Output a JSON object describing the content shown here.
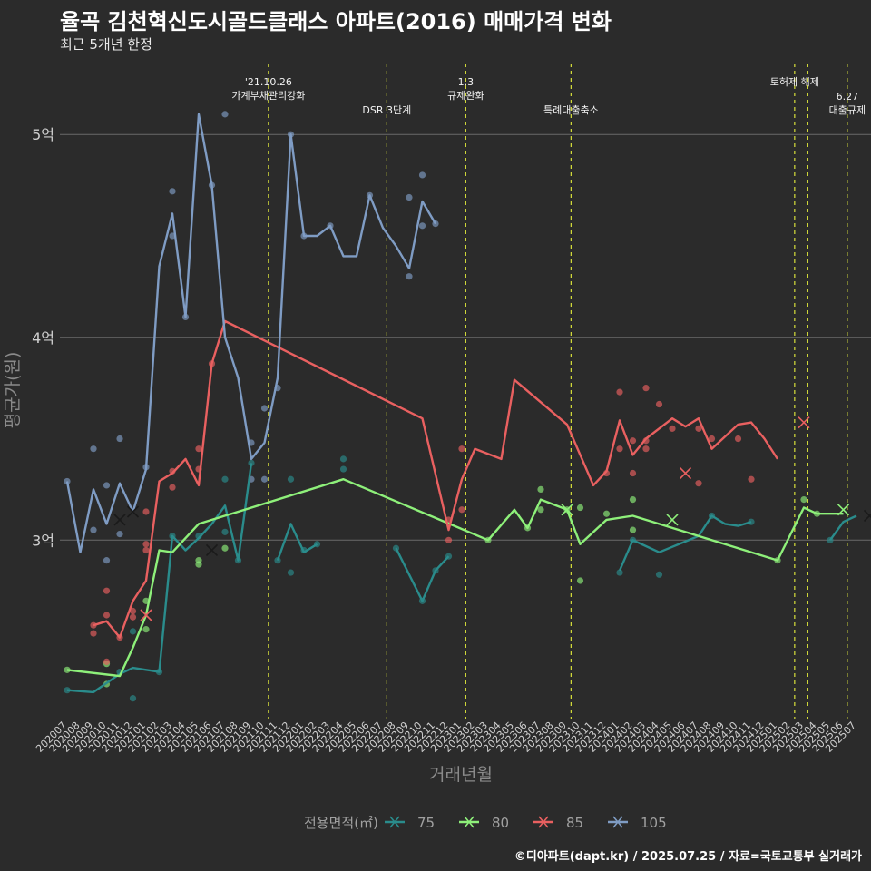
{
  "title": "율곡 김천혁신도시골드클래스 아파트(2016) 매매가격 변화",
  "subtitle": "최근 5개년 한정",
  "credit": "©디아파트(dapt.kr) / 2025.07.25 / 자료=국토교통부 실거래가",
  "chart_data": {
    "type": "line",
    "xlabel": "거래년월",
    "ylabel": "평균가(원)",
    "x": [
      "202007",
      "202008",
      "202009",
      "202010",
      "202011",
      "202012",
      "202101",
      "202102",
      "202103",
      "202104",
      "202105",
      "202106",
      "202107",
      "202108",
      "202109",
      "202110",
      "202111",
      "202112",
      "202201",
      "202202",
      "202203",
      "202204",
      "202205",
      "202206",
      "202207",
      "202208",
      "202209",
      "202210",
      "202211",
      "202212",
      "202301",
      "202302",
      "202303",
      "202304",
      "202305",
      "202306",
      "202307",
      "202308",
      "202309",
      "202310",
      "202311",
      "202312",
      "202401",
      "202402",
      "202403",
      "202404",
      "202405",
      "202406",
      "202407",
      "202408",
      "202409",
      "202410",
      "202411",
      "202412",
      "202501",
      "202502",
      "202503",
      "202504",
      "202505",
      "202506",
      "202507"
    ],
    "y_ticks": [
      {
        "value": 3.0,
        "label": "3억"
      },
      {
        "value": 4.0,
        "label": "4억"
      },
      {
        "value": 5.0,
        "label": "5억"
      }
    ],
    "ylim": [
      2.12,
      5.35
    ],
    "legend": {
      "title": "전용면적(㎡)",
      "position": "bottom"
    },
    "series": [
      {
        "name": "75",
        "color": "#2a8c8c",
        "values": [
          [
            0,
            2.26
          ],
          [
            2,
            2.25
          ],
          [
            4,
            2.34
          ],
          [
            5,
            2.37
          ],
          [
            7,
            2.35
          ],
          [
            8,
            3.02
          ],
          [
            9,
            2.95
          ],
          [
            10,
            3.01
          ],
          [
            11,
            3.08
          ],
          [
            12,
            3.17
          ],
          [
            13,
            2.9
          ],
          [
            14,
            3.38
          ],
          null,
          [
            16,
            2.9
          ],
          [
            17,
            3.08
          ],
          [
            18,
            2.94
          ],
          [
            19,
            2.98
          ],
          null,
          [
            25,
            2.96
          ],
          [
            27,
            2.7
          ],
          [
            28,
            2.85
          ],
          [
            29,
            2.92
          ],
          null,
          [
            42,
            2.85
          ],
          [
            43,
            3.0
          ],
          [
            44,
            2.97
          ],
          [
            45,
            2.94
          ],
          [
            48,
            3.02
          ],
          [
            49,
            3.12
          ],
          [
            50,
            3.08
          ],
          [
            51,
            3.07
          ],
          [
            52,
            3.09
          ],
          null,
          [
            58,
            3.0
          ],
          [
            59,
            3.09
          ],
          [
            60,
            3.12
          ]
        ]
      },
      {
        "name": "80",
        "color": "#8ef07a",
        "values": [
          [
            0,
            2.36
          ],
          [
            4,
            2.33
          ],
          [
            5,
            2.47
          ],
          [
            6,
            2.63
          ],
          [
            7,
            2.95
          ],
          [
            8,
            2.94
          ],
          [
            10,
            3.08
          ],
          [
            21,
            3.3
          ],
          [
            32,
            3.0
          ],
          [
            34,
            3.15
          ],
          [
            35,
            3.06
          ],
          [
            36,
            3.2
          ],
          [
            38,
            3.15
          ],
          [
            39,
            2.98
          ],
          [
            41,
            3.1
          ],
          [
            43,
            3.12
          ],
          [
            54,
            2.9
          ],
          [
            56,
            3.16
          ],
          [
            57,
            3.13
          ],
          [
            59,
            3.13
          ]
        ]
      },
      {
        "name": "85",
        "color": "#e96060",
        "values": [
          [
            2,
            2.58
          ],
          [
            3,
            2.6
          ],
          [
            4,
            2.52
          ],
          [
            5,
            2.7
          ],
          [
            6,
            2.8
          ],
          [
            7,
            3.29
          ],
          [
            8,
            3.33
          ],
          [
            9,
            3.4
          ],
          [
            10,
            3.27
          ],
          [
            11,
            3.87
          ],
          [
            12,
            4.08
          ],
          [
            27,
            3.6
          ],
          [
            29,
            3.05
          ],
          [
            30,
            3.3
          ],
          [
            31,
            3.45
          ],
          [
            33,
            3.4
          ],
          [
            34,
            3.79
          ],
          [
            38,
            3.57
          ],
          [
            40,
            3.27
          ],
          [
            41,
            3.34
          ],
          [
            42,
            3.59
          ],
          [
            43,
            3.42
          ],
          [
            44,
            3.5
          ],
          [
            46,
            3.6
          ],
          [
            47,
            3.56
          ],
          [
            48,
            3.6
          ],
          [
            49,
            3.45
          ],
          [
            51,
            3.57
          ],
          [
            52,
            3.58
          ],
          [
            53,
            3.5
          ],
          [
            54,
            3.4
          ]
        ]
      },
      {
        "name": "105",
        "color": "#7f9cc4",
        "values": [
          [
            0,
            3.29
          ],
          [
            1,
            2.94
          ],
          [
            2,
            3.25
          ],
          [
            3,
            3.08
          ],
          [
            4,
            3.28
          ],
          [
            5,
            3.14
          ],
          [
            6,
            3.35
          ],
          [
            7,
            4.35
          ],
          [
            8,
            4.61
          ],
          [
            9,
            4.1
          ],
          [
            10,
            5.1
          ],
          [
            11,
            4.75
          ],
          [
            12,
            4.0
          ],
          [
            13,
            3.8
          ],
          [
            14,
            3.4
          ],
          [
            15,
            3.48
          ],
          [
            16,
            3.8
          ],
          [
            17,
            5.0
          ],
          [
            18,
            4.5
          ],
          [
            19,
            4.5
          ],
          [
            20,
            4.55
          ],
          [
            21,
            4.4
          ],
          [
            22,
            4.4
          ],
          [
            23,
            4.7
          ],
          [
            24,
            4.54
          ],
          [
            25,
            4.45
          ],
          [
            26,
            4.34
          ],
          [
            27,
            4.67
          ],
          [
            28,
            4.56
          ]
        ]
      }
    ],
    "scatter_points": [
      {
        "series": "75",
        "x": 0,
        "y": 2.26
      },
      {
        "series": "75",
        "x": 4,
        "y": 2.35
      },
      {
        "series": "75",
        "x": 5,
        "y": 2.22
      },
      {
        "series": "75",
        "x": 5,
        "y": 2.55
      },
      {
        "series": "75",
        "x": 7,
        "y": 2.35
      },
      {
        "series": "75",
        "x": 8,
        "y": 3.02
      },
      {
        "series": "75",
        "x": 10,
        "y": 3.02
      },
      {
        "series": "75",
        "x": 12,
        "y": 3.3
      },
      {
        "series": "75",
        "x": 12,
        "y": 3.04
      },
      {
        "series": "75",
        "x": 13,
        "y": 2.9
      },
      {
        "series": "75",
        "x": 14,
        "y": 3.38
      },
      {
        "series": "75",
        "x": 16,
        "y": 2.9
      },
      {
        "series": "75",
        "x": 17,
        "y": 2.84
      },
      {
        "series": "75",
        "x": 17,
        "y": 3.3
      },
      {
        "series": "75",
        "x": 18,
        "y": 2.95
      },
      {
        "series": "75",
        "x": 19,
        "y": 2.98
      },
      {
        "series": "75",
        "x": 21,
        "y": 3.4
      },
      {
        "series": "75",
        "x": 21,
        "y": 3.35
      },
      {
        "series": "75",
        "x": 25,
        "y": 2.96
      },
      {
        "series": "75",
        "x": 27,
        "y": 2.7
      },
      {
        "series": "75",
        "x": 28,
        "y": 2.85
      },
      {
        "series": "75",
        "x": 29,
        "y": 2.92
      },
      {
        "series": "75",
        "x": 42,
        "y": 2.84
      },
      {
        "series": "75",
        "x": 43,
        "y": 3.0
      },
      {
        "series": "75",
        "x": 45,
        "y": 2.83
      },
      {
        "series": "75",
        "x": 49,
        "y": 3.12
      },
      {
        "series": "75",
        "x": 52,
        "y": 3.09
      },
      {
        "series": "75",
        "x": 58,
        "y": 3.0
      },
      {
        "series": "80",
        "x": 0,
        "y": 2.36
      },
      {
        "series": "80",
        "x": 3,
        "y": 2.39
      },
      {
        "series": "80",
        "x": 3,
        "y": 2.29
      },
      {
        "series": "80",
        "x": 6,
        "y": 2.7
      },
      {
        "series": "80",
        "x": 6,
        "y": 2.56
      },
      {
        "series": "80",
        "x": 10,
        "y": 2.88
      },
      {
        "series": "80",
        "x": 10,
        "y": 2.9
      },
      {
        "series": "80",
        "x": 12,
        "y": 2.96
      },
      {
        "series": "80",
        "x": 32,
        "y": 3.0
      },
      {
        "series": "80",
        "x": 35,
        "y": 3.06
      },
      {
        "series": "80",
        "x": 36,
        "y": 3.25
      },
      {
        "series": "80",
        "x": 36,
        "y": 3.15
      },
      {
        "series": "80",
        "x": 38,
        "y": 3.15
      },
      {
        "series": "80",
        "x": 39,
        "y": 2.8
      },
      {
        "series": "80",
        "x": 39,
        "y": 3.16
      },
      {
        "series": "80",
        "x": 41,
        "y": 3.13
      },
      {
        "series": "80",
        "x": 43,
        "y": 3.2
      },
      {
        "series": "80",
        "x": 43,
        "y": 3.05
      },
      {
        "series": "80",
        "x": 54,
        "y": 2.9
      },
      {
        "series": "80",
        "x": 56,
        "y": 3.2
      },
      {
        "series": "80",
        "x": 57,
        "y": 3.13
      },
      {
        "series": "85",
        "x": 2,
        "y": 2.58
      },
      {
        "series": "85",
        "x": 2,
        "y": 2.54
      },
      {
        "series": "85",
        "x": 3,
        "y": 2.75
      },
      {
        "series": "85",
        "x": 3,
        "y": 2.63
      },
      {
        "series": "85",
        "x": 3,
        "y": 2.4
      },
      {
        "series": "85",
        "x": 4,
        "y": 2.52
      },
      {
        "series": "85",
        "x": 5,
        "y": 2.65
      },
      {
        "series": "85",
        "x": 5,
        "y": 2.62
      },
      {
        "series": "85",
        "x": 6,
        "y": 3.14
      },
      {
        "series": "85",
        "x": 6,
        "y": 2.98
      },
      {
        "series": "85",
        "x": 6,
        "y": 2.95
      },
      {
        "series": "85",
        "x": 8,
        "y": 3.34
      },
      {
        "series": "85",
        "x": 8,
        "y": 3.26
      },
      {
        "series": "85",
        "x": 10,
        "y": 3.45
      },
      {
        "series": "85",
        "x": 10,
        "y": 3.35
      },
      {
        "series": "85",
        "x": 11,
        "y": 3.87
      },
      {
        "series": "85",
        "x": 29,
        "y": 3.0
      },
      {
        "series": "85",
        "x": 29,
        "y": 3.1
      },
      {
        "series": "85",
        "x": 30,
        "y": 3.45
      },
      {
        "series": "85",
        "x": 30,
        "y": 3.15
      },
      {
        "series": "85",
        "x": 41,
        "y": 3.33
      },
      {
        "series": "85",
        "x": 42,
        "y": 3.73
      },
      {
        "series": "85",
        "x": 42,
        "y": 3.45
      },
      {
        "series": "85",
        "x": 43,
        "y": 3.49
      },
      {
        "series": "85",
        "x": 43,
        "y": 3.33
      },
      {
        "series": "85",
        "x": 44,
        "y": 3.75
      },
      {
        "series": "85",
        "x": 44,
        "y": 3.49
      },
      {
        "series": "85",
        "x": 44,
        "y": 3.45
      },
      {
        "series": "85",
        "x": 45,
        "y": 3.67
      },
      {
        "series": "85",
        "x": 46,
        "y": 3.55
      },
      {
        "series": "85",
        "x": 48,
        "y": 3.55
      },
      {
        "series": "85",
        "x": 48,
        "y": 3.28
      },
      {
        "series": "85",
        "x": 49,
        "y": 3.5
      },
      {
        "series": "85",
        "x": 51,
        "y": 3.5
      },
      {
        "series": "85",
        "x": 52,
        "y": 3.3
      },
      {
        "series": "105",
        "x": 0,
        "y": 3.29
      },
      {
        "series": "105",
        "x": 2,
        "y": 3.45
      },
      {
        "series": "105",
        "x": 2,
        "y": 3.05
      },
      {
        "series": "105",
        "x": 3,
        "y": 3.27
      },
      {
        "series": "105",
        "x": 3,
        "y": 2.9
      },
      {
        "series": "105",
        "x": 4,
        "y": 3.5
      },
      {
        "series": "105",
        "x": 4,
        "y": 3.03
      },
      {
        "series": "105",
        "x": 6,
        "y": 3.36
      },
      {
        "series": "105",
        "x": 8,
        "y": 4.72
      },
      {
        "series": "105",
        "x": 8,
        "y": 4.5
      },
      {
        "series": "105",
        "x": 9,
        "y": 4.1
      },
      {
        "series": "105",
        "x": 12,
        "y": 5.1
      },
      {
        "series": "105",
        "x": 11,
        "y": 4.75
      },
      {
        "series": "105",
        "x": 14,
        "y": 3.48
      },
      {
        "series": "105",
        "x": 14,
        "y": 3.3
      },
      {
        "series": "105",
        "x": 15,
        "y": 3.65
      },
      {
        "series": "105",
        "x": 15,
        "y": 3.3
      },
      {
        "series": "105",
        "x": 16,
        "y": 3.75
      },
      {
        "series": "105",
        "x": 17,
        "y": 5.0
      },
      {
        "series": "105",
        "x": 18,
        "y": 4.5
      },
      {
        "series": "105",
        "x": 20,
        "y": 4.55
      },
      {
        "series": "105",
        "x": 23,
        "y": 4.7
      },
      {
        "series": "105",
        "x": 26,
        "y": 4.69
      },
      {
        "series": "105",
        "x": 26,
        "y": 4.3
      },
      {
        "series": "105",
        "x": 27,
        "y": 4.8
      },
      {
        "series": "105",
        "x": 27,
        "y": 4.55
      },
      {
        "series": "105",
        "x": 28,
        "y": 4.56
      }
    ],
    "median_markers": [
      {
        "series": "105",
        "x": 4,
        "y": 3.1
      },
      {
        "series": "105",
        "x": 5,
        "y": 3.14
      },
      {
        "series": "85",
        "x": 6,
        "y": 2.63
      },
      {
        "series": "75",
        "x": 11,
        "y": 2.95
      },
      {
        "series": "80",
        "x": 38,
        "y": 3.15
      },
      {
        "series": "80",
        "x": 46,
        "y": 3.1
      },
      {
        "series": "85",
        "x": 47,
        "y": 3.33
      },
      {
        "series": "85",
        "x": 56,
        "y": 3.58
      },
      {
        "series": "80",
        "x": 59,
        "y": 3.15
      },
      {
        "series": "75",
        "x": 61,
        "y": 3.12
      }
    ],
    "events": [
      {
        "x": 15.3,
        "label": [
          "'21.10.26",
          "가계부채관리강화"
        ],
        "row": 0
      },
      {
        "x": 24.3,
        "label": [
          "DSR 3단계"
        ],
        "row": 1
      },
      {
        "x": 30.3,
        "label": [
          "1.3",
          "규제완화"
        ],
        "row": 0
      },
      {
        "x": 38.3,
        "label": [
          "특례대출축소"
        ],
        "row": 1
      },
      {
        "x": 55.3,
        "label": [
          "토허제 해제"
        ],
        "row": 0
      },
      {
        "x": 56.3,
        "label": [],
        "row": 0
      },
      {
        "x": 59.3,
        "label": [
          "6.27",
          "대출규제"
        ],
        "row": 1
      }
    ]
  }
}
